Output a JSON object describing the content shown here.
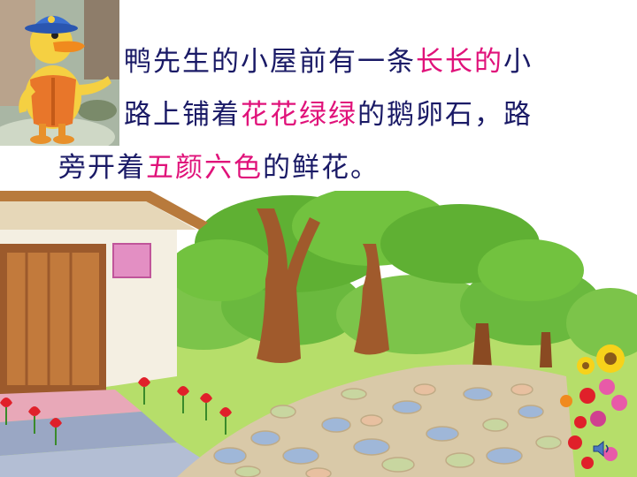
{
  "story": {
    "line1": {
      "a": "鸭先生的小屋前有一条",
      "b": "长长的",
      "c": "小"
    },
    "line2": {
      "a": "路上铺着",
      "b": "花花绿绿",
      "c": "的鹅卵石，路"
    },
    "line3": {
      "a": "旁开着",
      "b": "五颜六色",
      "c": "的鲜花。"
    }
  },
  "colors": {
    "text": "#1a1a66",
    "highlight": "#e0127a"
  },
  "icons": {
    "duck": "duck-character",
    "speaker": "speaker-icon"
  }
}
